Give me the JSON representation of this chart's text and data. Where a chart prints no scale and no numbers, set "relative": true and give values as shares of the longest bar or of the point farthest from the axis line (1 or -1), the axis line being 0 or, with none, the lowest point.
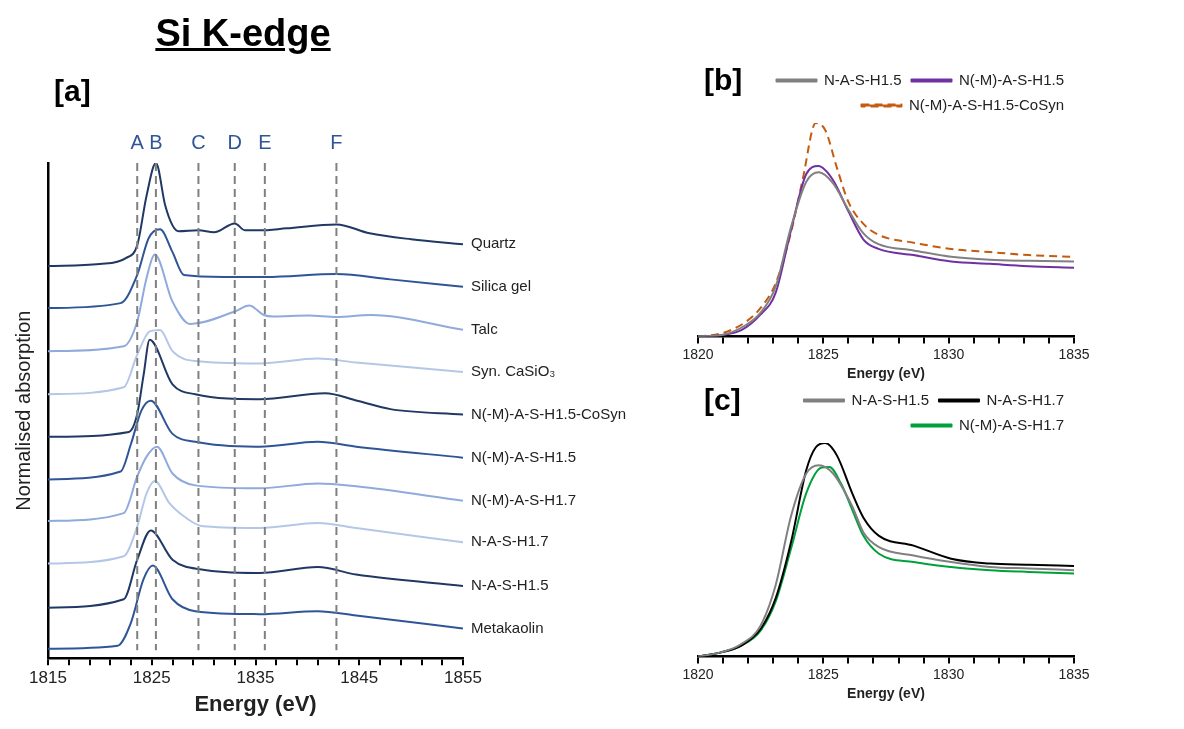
{
  "chart_data": [
    {
      "type": "line",
      "title": "Si K-edge",
      "xlabel": "Energy (eV)",
      "ylabel": "Normalised absorption",
      "relative": true,
      "legend": false,
      "annotations": [
        "[a]"
      ],
      "xlim": [
        1815,
        1855
      ],
      "xticks": [
        1815,
        {
          "value": 1817,
          "label": null
        },
        {
          "value": 1819,
          "label": null
        },
        {
          "value": 1821,
          "label": null
        },
        {
          "value": 1823,
          "label": null
        },
        1825,
        {
          "value": 1827,
          "label": null
        },
        {
          "value": 1829,
          "label": null
        },
        {
          "value": 1831,
          "label": null
        },
        {
          "value": 1833,
          "label": null
        },
        1835,
        {
          "value": 1837,
          "label": null
        },
        {
          "value": 1839,
          "label": null
        },
        {
          "value": 1841,
          "label": null
        },
        {
          "value": 1843,
          "label": null
        },
        1845,
        {
          "value": 1847,
          "label": null
        },
        {
          "value": 1849,
          "label": null
        },
        {
          "value": 1851,
          "label": null
        },
        {
          "value": 1853,
          "label": null
        },
        1855
      ],
      "ref_lines": [
        {
          "axis": "x",
          "value": 1823.6,
          "label": "A",
          "color": "#808080",
          "line_style": "dashed"
        },
        {
          "axis": "x",
          "value": 1825.4,
          "label": "B",
          "color": "#808080",
          "line_style": "dashed"
        },
        {
          "axis": "x",
          "value": 1829.5,
          "label": "C",
          "color": "#808080",
          "line_style": "dashed"
        },
        {
          "axis": "x",
          "value": 1833.0,
          "label": "D",
          "color": "#808080",
          "line_style": "dashed"
        },
        {
          "axis": "x",
          "value": 1835.9,
          "label": "E",
          "color": "#808080",
          "line_style": "dashed"
        },
        {
          "axis": "x",
          "value": 1842.8,
          "label": "F",
          "color": "#808080",
          "line_style": "dashed"
        }
      ],
      "series": [
        {
          "name": "Quartz",
          "color": "#203864",
          "x": [
            1815,
            1820,
            1822.5,
            1823.6,
            1824.5,
            1825.4,
            1826.3,
            1827,
            1827.6,
            1829.5,
            1831,
            1833,
            1834,
            1835.4,
            1838,
            1842.8,
            1846,
            1850,
            1855
          ],
          "values": [
            0.792,
            0.796,
            0.808,
            0.834,
            0.934,
            1,
            0.914,
            0.874,
            0.862,
            0.864,
            0.86,
            0.878,
            0.864,
            0.864,
            0.868,
            0.876,
            0.858,
            0.846,
            0.836
          ]
        },
        {
          "name": "Silica gel",
          "color": "#2f5597",
          "x": [
            1815,
            1822,
            1823.6,
            1824.7,
            1825.8,
            1827,
            1828.1,
            1832,
            1836,
            1842.8,
            1848,
            1855
          ],
          "values": [
            0.707,
            0.717,
            0.774,
            0.848,
            0.866,
            0.82,
            0.774,
            0.77,
            0.77,
            0.776,
            0.765,
            0.75
          ]
        },
        {
          "name": "Talc",
          "color": "#8faadc",
          "x": [
            1815,
            1822.3,
            1823.6,
            1824.5,
            1825.3,
            1827,
            1828.7,
            1833,
            1834.4,
            1835.8,
            1836.7,
            1840.1,
            1842.8,
            1846.1,
            1855
          ],
          "values": [
            0.62,
            0.63,
            0.68,
            0.768,
            0.815,
            0.72,
            0.675,
            0.7,
            0.712,
            0.693,
            0.69,
            0.692,
            0.689,
            0.693,
            0.663
          ]
        },
        {
          "name": "Syn. CaSiO₃",
          "color": "#b4c7e7",
          "x": [
            1815,
            1822.3,
            1823.6,
            1824.8,
            1825.8,
            1827,
            1829.2,
            1835.4,
            1841,
            1844.7,
            1855
          ],
          "values": [
            0.533,
            0.547,
            0.613,
            0.66,
            0.663,
            0.62,
            0.6,
            0.595,
            0.605,
            0.597,
            0.578
          ]
        },
        {
          "name": "N(-M)-A-S-H1.5-CoSyn",
          "color": "#203864",
          "x": [
            1815,
            1822.8,
            1823.6,
            1824.2,
            1824.8,
            1827,
            1829.2,
            1835.4,
            1841.7,
            1844.8,
            1848,
            1855
          ],
          "values": [
            0.447,
            0.457,
            0.493,
            0.57,
            0.643,
            0.553,
            0.533,
            0.523,
            0.535,
            0.52,
            0.503,
            0.492
          ]
        },
        {
          "name": "N(-M)-A-S-H1.5",
          "color": "#2f5597",
          "x": [
            1815,
            1822,
            1823,
            1824,
            1824.9,
            1827,
            1829.2,
            1835.4,
            1841,
            1844.7,
            1855
          ],
          "values": [
            0.361,
            0.377,
            0.433,
            0.5,
            0.52,
            0.453,
            0.437,
            0.427,
            0.437,
            0.427,
            0.405
          ]
        },
        {
          "name": "N(-M)-A-S-H1.7",
          "color": "#8faadc",
          "x": [
            1815,
            1822.3,
            1823.6,
            1824.5,
            1825.5,
            1827,
            1829.2,
            1835.4,
            1841,
            1844.7,
            1855
          ],
          "values": [
            0.277,
            0.293,
            0.367,
            0.407,
            0.427,
            0.373,
            0.349,
            0.343,
            0.353,
            0.347,
            0.318
          ]
        },
        {
          "name": "N-A-S-H1.7",
          "color": "#b4c7e7",
          "x": [
            1815,
            1822.3,
            1823.6,
            1824.5,
            1825.3,
            1826.7,
            1828.6,
            1829.8,
            1835.4,
            1841,
            1844.7,
            1855
          ],
          "values": [
            0.191,
            0.206,
            0.266,
            0.333,
            0.358,
            0.313,
            0.279,
            0.267,
            0.263,
            0.273,
            0.263,
            0.234
          ]
        },
        {
          "name": "N-A-S-H1.5",
          "color": "#203864",
          "x": [
            1815,
            1822.3,
            1823.6,
            1824.9,
            1827,
            1829.8,
            1835.4,
            1841,
            1844.7,
            1855
          ],
          "values": [
            0.102,
            0.119,
            0.199,
            0.258,
            0.199,
            0.179,
            0.172,
            0.184,
            0.169,
            0.146
          ]
        },
        {
          "name": "Metakaolin",
          "color": "#2f5597",
          "x": [
            1815,
            1821.7,
            1823,
            1824.2,
            1825.1,
            1827,
            1829.2,
            1835.4,
            1841,
            1844.7,
            1855
          ],
          "values": [
            0.019,
            0.025,
            0.072,
            0.159,
            0.187,
            0.119,
            0.095,
            0.089,
            0.095,
            0.086,
            0.06
          ]
        }
      ]
    },
    {
      "type": "line",
      "xlabel": "Energy (eV)",
      "relative": true,
      "legend": "top right",
      "annotations": [
        "[b]"
      ],
      "xlim": [
        1820,
        1835
      ],
      "xticks": [
        1820,
        {
          "value": 1821,
          "label": null
        },
        {
          "value": 1822,
          "label": null
        },
        {
          "value": 1823,
          "label": null
        },
        {
          "value": 1824,
          "label": null
        },
        1825,
        {
          "value": 1826,
          "label": null
        },
        {
          "value": 1827,
          "label": null
        },
        {
          "value": 1828,
          "label": null
        },
        {
          "value": 1829,
          "label": null
        },
        1830,
        {
          "value": 1831,
          "label": null
        },
        {
          "value": 1832,
          "label": null
        },
        {
          "value": 1833,
          "label": null
        },
        {
          "value": 1834,
          "label": null
        },
        1835
      ],
      "series": [
        {
          "name": "N-A-S-H1.5",
          "color": "#808080",
          "x": [
            1820,
            1820.96,
            1821.88,
            1822.49,
            1823.1,
            1823.71,
            1824.32,
            1824.82,
            1825.39,
            1826.0,
            1826.6,
            1827.2,
            1828.6,
            1830.1,
            1831.65,
            1833.2,
            1835
          ],
          "values": [
            0,
            0.007,
            0.051,
            0.11,
            0.234,
            0.512,
            0.725,
            0.769,
            0.717,
            0.593,
            0.483,
            0.432,
            0.403,
            0.373,
            0.359,
            0.354,
            0.351
          ]
        },
        {
          "name": "N(-M)-A-S-H1.5",
          "color": "#7030a0",
          "x": [
            1820,
            1820.96,
            1821.73,
            1822.49,
            1823.1,
            1823.71,
            1824.32,
            1824.8,
            1825.39,
            1826.0,
            1826.6,
            1827.2,
            1828.6,
            1830.1,
            1831.65,
            1833.2,
            1835
          ],
          "values": [
            0,
            0.007,
            0.029,
            0.102,
            0.205,
            0.498,
            0.761,
            0.798,
            0.732,
            0.586,
            0.454,
            0.41,
            0.381,
            0.351,
            0.34,
            0.329,
            0.322
          ]
        },
        {
          "name": "N(-M)-A-S-H1.5-CoSyn",
          "color": "#c55a11",
          "line_style": "dashed",
          "x": [
            1820,
            1820.96,
            1821.88,
            1822.49,
            1823.1,
            1823.7,
            1824.17,
            1824.7,
            1825.08,
            1825.54,
            1826.0,
            1826.6,
            1827.2,
            1828.6,
            1830.1,
            1831.65,
            1833.2,
            1835
          ],
          "values": [
            0,
            0.015,
            0.066,
            0.132,
            0.249,
            0.483,
            0.732,
            1,
            0.966,
            0.791,
            0.63,
            0.527,
            0.476,
            0.439,
            0.41,
            0.395,
            0.381,
            0.373
          ]
        }
      ]
    },
    {
      "type": "line",
      "xlabel": "Energy (eV)",
      "relative": true,
      "legend": "top right",
      "annotations": [
        "[c]"
      ],
      "xlim": [
        1820,
        1835
      ],
      "xticks": [
        1820,
        {
          "value": 1821,
          "label": null
        },
        {
          "value": 1822,
          "label": null
        },
        {
          "value": 1823,
          "label": null
        },
        {
          "value": 1824,
          "label": null
        },
        1825,
        {
          "value": 1826,
          "label": null
        },
        {
          "value": 1827,
          "label": null
        },
        {
          "value": 1828,
          "label": null
        },
        {
          "value": 1829,
          "label": null
        },
        1830,
        {
          "value": 1831,
          "label": null
        },
        {
          "value": 1832,
          "label": null
        },
        {
          "value": 1833,
          "label": null
        },
        {
          "value": 1834,
          "label": null
        },
        1835
      ],
      "series": [
        {
          "name": "N-A-S-H1.5",
          "color": "#808080",
          "x": [
            1820,
            1820.96,
            1821.73,
            1822.49,
            1823.1,
            1823.71,
            1824.32,
            1824.82,
            1825.39,
            1826.15,
            1826.6,
            1827.22,
            1828.6,
            1830.1,
            1831.65,
            1833.2,
            1835
          ],
          "values": [
            0,
            0.02,
            0.058,
            0.143,
            0.335,
            0.657,
            0.857,
            0.896,
            0.857,
            0.704,
            0.581,
            0.512,
            0.473,
            0.442,
            0.419,
            0.412,
            0.404
          ]
        },
        {
          "name": "N-A-S-H1.7",
          "color": "#000000",
          "x": [
            1820,
            1820.96,
            1821.73,
            1822.49,
            1823.1,
            1823.71,
            1824.32,
            1824.7,
            1825.08,
            1825.54,
            1826.15,
            1826.6,
            1827.22,
            1828.6,
            1830.1,
            1831.65,
            1833.2,
            1835
          ],
          "values": [
            0,
            0.02,
            0.051,
            0.127,
            0.273,
            0.535,
            0.873,
            0.98,
            1,
            0.942,
            0.765,
            0.65,
            0.565,
            0.519,
            0.458,
            0.435,
            0.43,
            0.424
          ]
        },
        {
          "name": "N(-M)-A-S-H1.7",
          "color": "#00a03c",
          "x": [
            1820,
            1820.96,
            1821.73,
            1822.49,
            1823.1,
            1823.71,
            1824.32,
            1824.93,
            1825.24,
            1825.7,
            1826.15,
            1826.6,
            1827.22,
            1828.6,
            1830.1,
            1831.65,
            1833.2,
            1835
          ],
          "values": [
            0,
            0.02,
            0.051,
            0.12,
            0.258,
            0.504,
            0.765,
            0.885,
            0.888,
            0.811,
            0.688,
            0.565,
            0.481,
            0.442,
            0.419,
            0.404,
            0.396,
            0.389
          ]
        }
      ]
    }
  ]
}
